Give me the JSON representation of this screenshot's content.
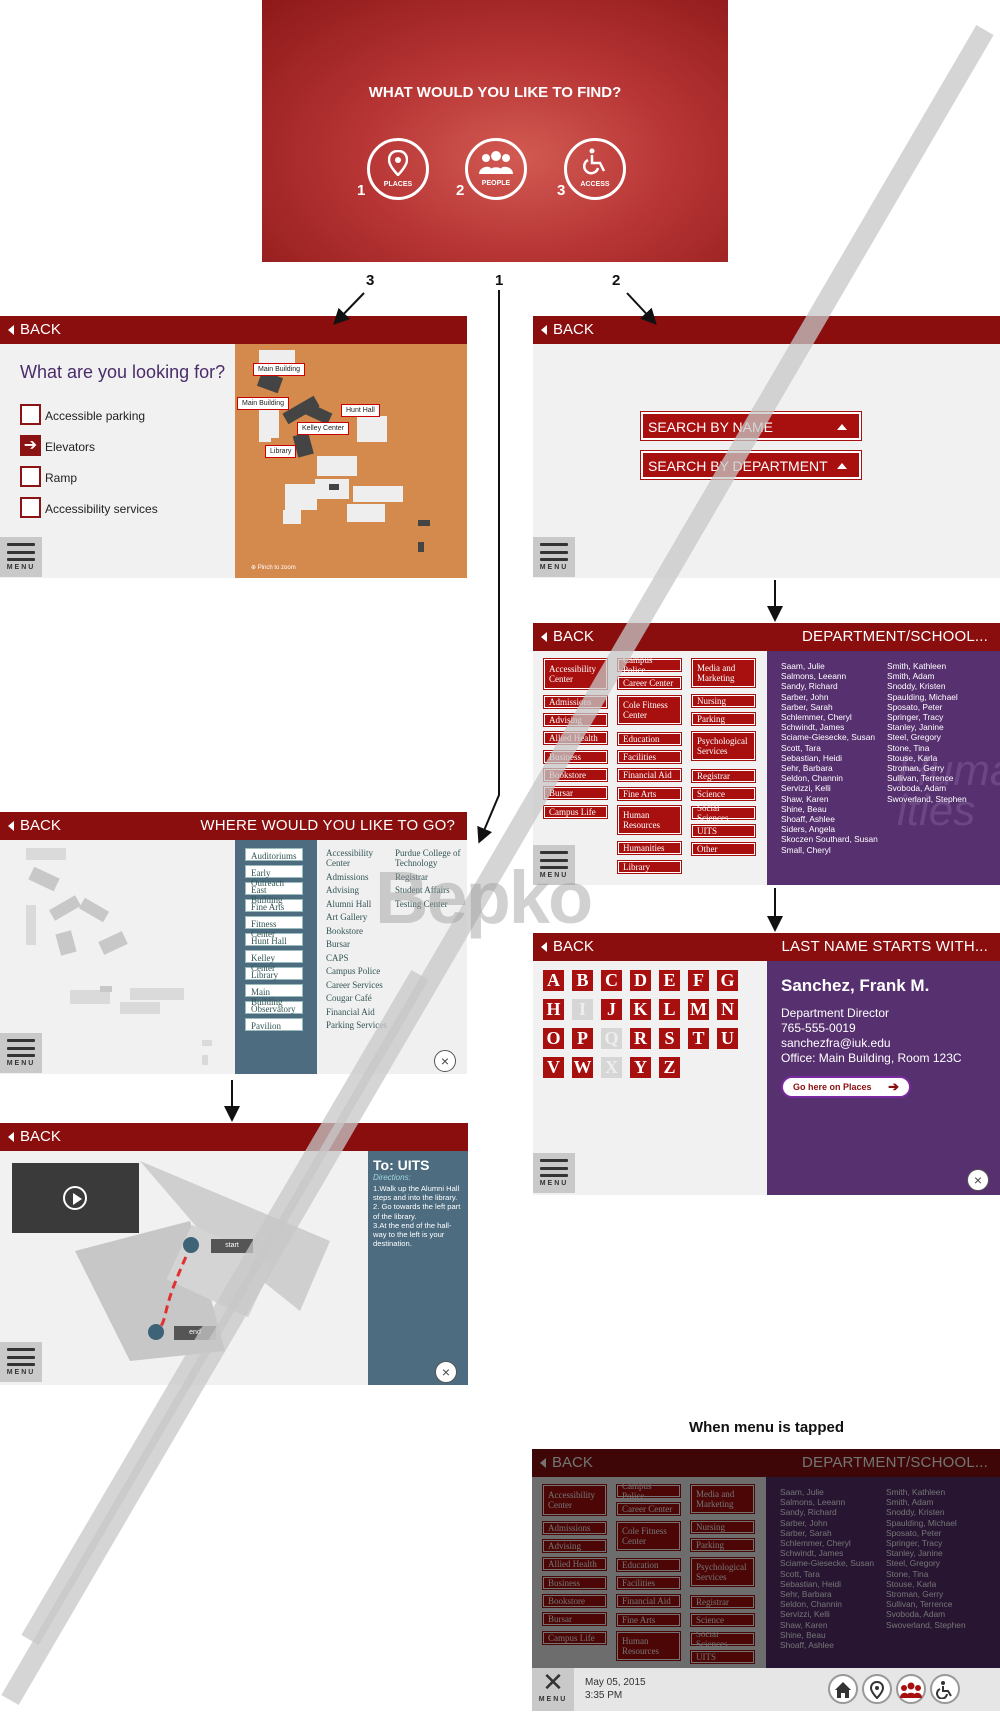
{
  "hero": {
    "title": "WHAT WOULD YOU LIKE TO FIND?",
    "options": [
      {
        "num": "1",
        "label": "PLACES",
        "icon": "map-pin-icon"
      },
      {
        "num": "2",
        "label": "PEOPLE",
        "icon": "people-icon"
      },
      {
        "num": "3",
        "label": "ACCESS",
        "icon": "wheelchair-icon"
      }
    ]
  },
  "flow_numbers": {
    "left": "3",
    "center": "1",
    "right": "2"
  },
  "common": {
    "back": "BACK",
    "menu": "MENU",
    "close": "×"
  },
  "access": {
    "question": "What are you looking for?",
    "options": [
      {
        "label": "Accessible parking",
        "checked": false
      },
      {
        "label": "Elevators",
        "checked": true
      },
      {
        "label": "Ramp",
        "checked": false
      },
      {
        "label": "Accessibility services",
        "checked": false
      }
    ],
    "map_labels": [
      "Main Building",
      "Main Building",
      "Hunt Hall",
      "Kelley Center",
      "Library"
    ],
    "pinch": "⊕ Pinch to zoom"
  },
  "people_search": {
    "by_name": "SEARCH BY NAME",
    "by_department": "SEARCH BY DEPARTMENT"
  },
  "departments": {
    "title": "DEPARTMENT/SCHOOL...",
    "col1": [
      "Accessibility Center",
      "Admissions",
      "Advising",
      "Allied Health",
      "Business",
      "Bookstore",
      "Bursar",
      "Campus Life"
    ],
    "col2": [
      "Campus Police",
      "Career Center",
      "Cole Fitness Center",
      "Education",
      "Facilities",
      "Financial Aid",
      "Fine Arts",
      "Human Resources",
      "Humanities",
      "Library"
    ],
    "col3": [
      "Media and Marketing",
      "Nursing",
      "Parking",
      "Psychological Services",
      "Registrar",
      "Science",
      "Social Sciences",
      "UITS",
      "Other"
    ],
    "names1": [
      "Saam, Julie",
      "Salmons, Leeann",
      "Sandy, Richard",
      "Sarber, John",
      "Sarber, Sarah",
      "Schlemmer, Cheryl",
      "Schwindt, James",
      "Sciame-Giesecke, Susan",
      "Scott, Tara",
      "Sebastian, Heidi",
      "Sehr, Barbara",
      "Seldon, Channin",
      "Servizzi, Kelli",
      "Shaw, Karen",
      "Shine, Beau",
      "Shoaff, Ashlee",
      "Siders, Angela",
      "Skoczen Southard, Susan",
      "Small, Cheryl"
    ],
    "names2": [
      "Smith, Kathleen",
      "Smith, Adam",
      "Snoddy, Kristen",
      "Spaulding, Michael",
      "Sposato, Peter",
      "Springer, Tracy",
      "Stanley, Janine",
      "Steel, Gregory",
      "Stone, Tina",
      "Stouse, Karla",
      "Stroman, Gerry",
      "Sullivan, Terrence",
      "Svoboda, Adam",
      "Swoverland, Stephen"
    ],
    "watermark": "Huma\nities"
  },
  "places": {
    "title": "WHERE WOULD YOU LIKE TO GO?",
    "col1": [
      "Auditoriums",
      "Early Outreach",
      "East Building",
      "Fine Arts",
      "Fitness Center",
      "Hunt Hall",
      "Kelley Center",
      "Library",
      "Main Building",
      "Observatory",
      "Pavilion"
    ],
    "col2": [
      "Accessibility Center",
      "Admissions",
      "Advising",
      "Alumni Hall",
      "Art Gallery",
      "Bookstore",
      "Bursar",
      "CAPS",
      "Campus Police",
      "Career Services",
      "Cougar Café",
      "Financial Aid",
      "Parking Services"
    ],
    "col3": [
      "Purdue College of Technology",
      "Registrar",
      "Student Affairs",
      "Testing Center"
    ]
  },
  "lastname": {
    "title": "LAST NAME STARTS WITH...",
    "letters": [
      "A",
      "B",
      "C",
      "D",
      "E",
      "F",
      "G",
      "H",
      "I",
      "J",
      "K",
      "L",
      "M",
      "N",
      "O",
      "P",
      "Q",
      "R",
      "S",
      "T",
      "U",
      "V",
      "W",
      "X",
      "Y",
      "Z"
    ],
    "disabled": [
      "I",
      "Q",
      "X"
    ],
    "person": {
      "name": "Sanchez, Frank M.",
      "role": "Department Director",
      "phone": "765-555-0019",
      "email": "sanchezfra@iuk.edu",
      "office": "Office: Main Building, Room 123C",
      "go_button": "Go here on Places"
    }
  },
  "directions": {
    "to": "To: UITS",
    "heading": "Directions:",
    "steps": "1.Walk up the Alumni Hall steps and into the library.\n2. Go towards the left part of the library.\n3.At the end of the hall-way to the left is your destination.",
    "start": "start",
    "end": "end"
  },
  "menu_state": {
    "caption": "When menu is tapped",
    "date": "May 05, 2015",
    "time": "3:35 PM",
    "nav_icons": [
      "home-icon",
      "map-pin-icon",
      "people-icon",
      "wheelchair-icon"
    ]
  },
  "watermark": "Bepko",
  "colors": {
    "brand_red": "#8b0e0e",
    "button_red": "#a80f0f",
    "purple": "#57306f",
    "slate": "#4d6c80",
    "map_orange": "#d4894d"
  }
}
